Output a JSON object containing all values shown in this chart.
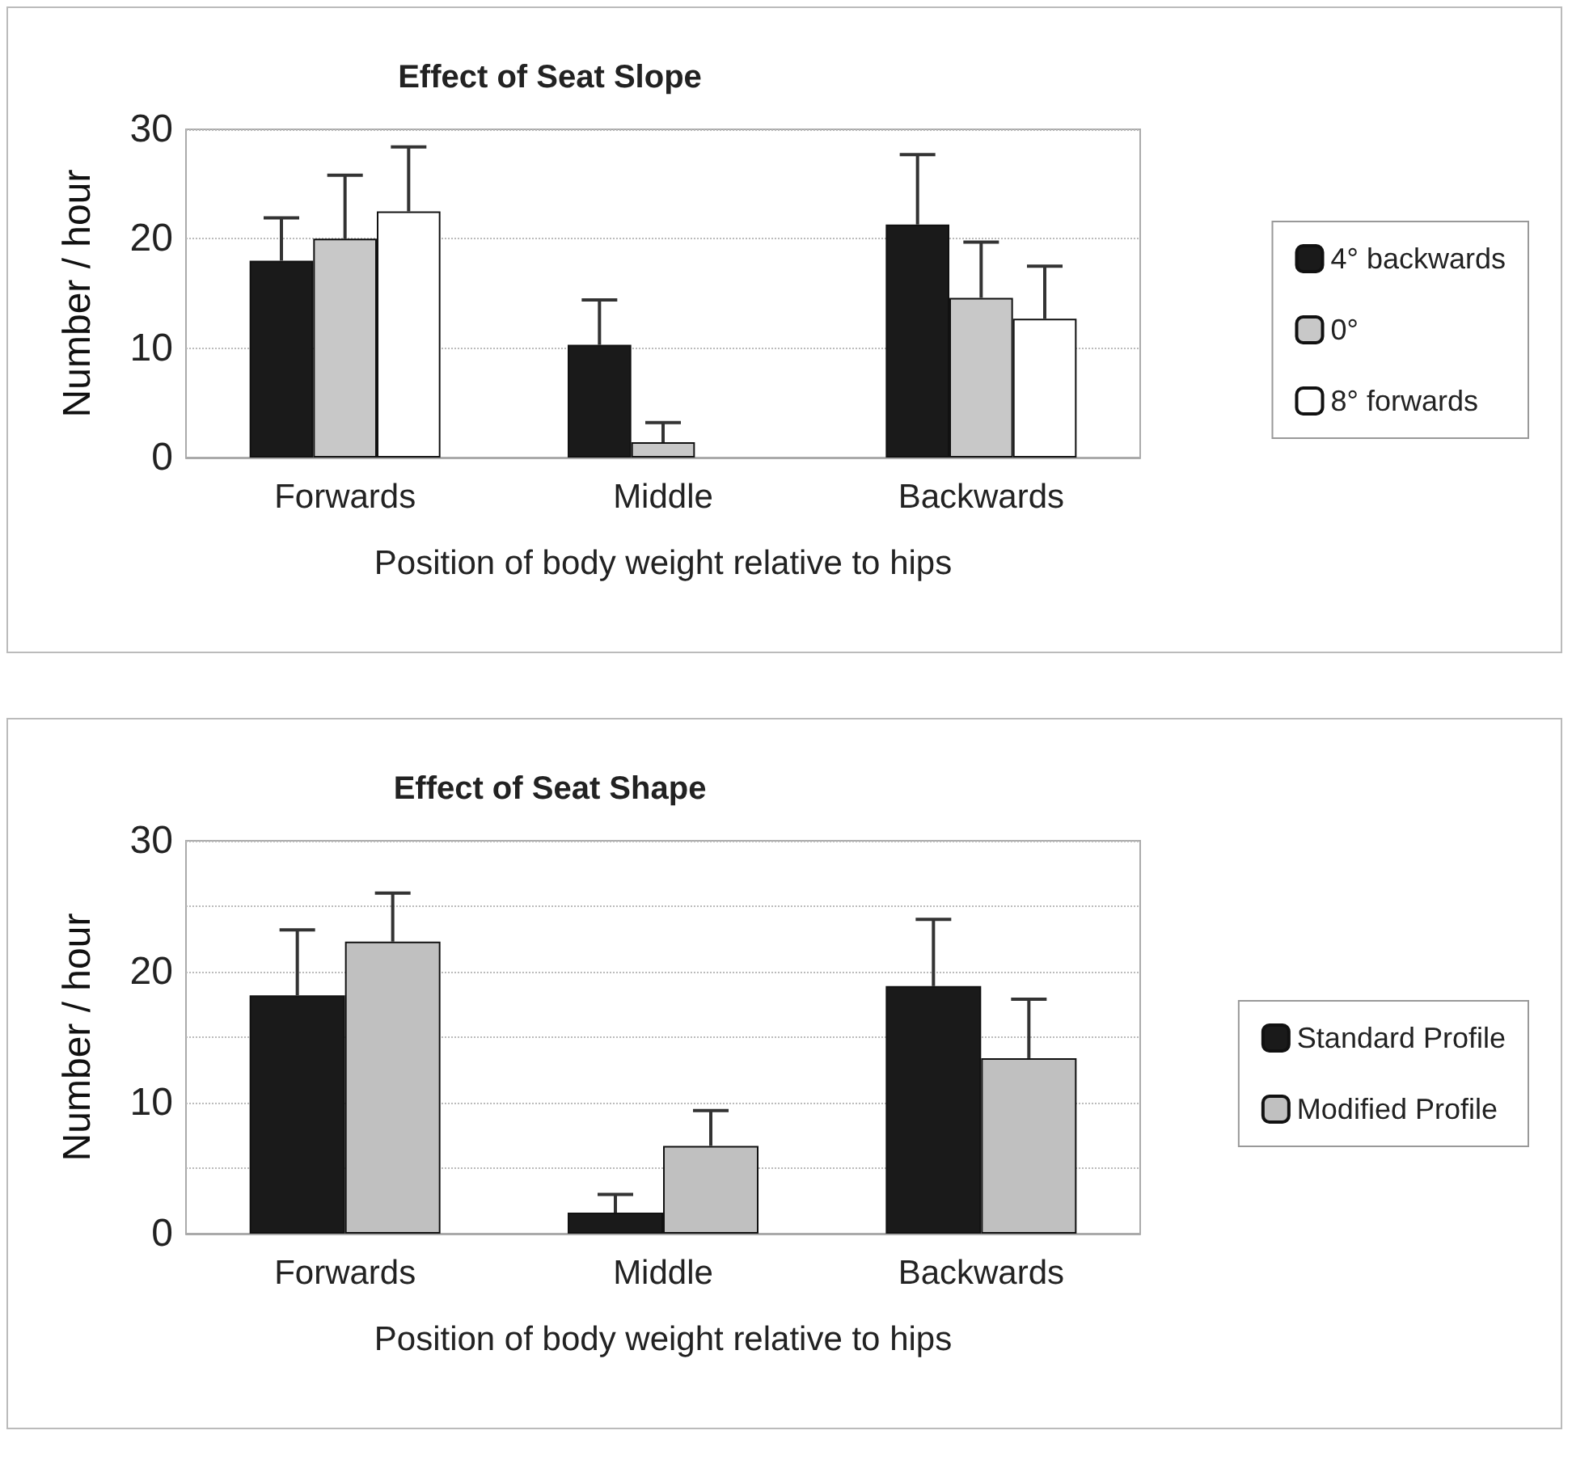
{
  "chart_data": [
    {
      "type": "bar",
      "title": "Effect of Seat Slope",
      "xlabel": "Position of body weight relative to hips",
      "ylabel": "Number / hour",
      "categories": [
        "Forwards",
        "Middle",
        "Backwards"
      ],
      "series": [
        {
          "name": "4° backwards",
          "color": "#1a1a1a",
          "values": [
            18,
            10.3,
            21.3
          ],
          "errors": [
            [
              18,
              21.9
            ],
            [
              10.3,
              14.4
            ],
            [
              21.3,
              27.7
            ]
          ]
        },
        {
          "name": "0°",
          "color": "#c8c8c8",
          "values": [
            20,
            1.4,
            14.6
          ],
          "errors": [
            [
              20,
              25.8
            ],
            [
              1.4,
              3.2
            ],
            [
              14.6,
              19.7
            ]
          ]
        },
        {
          "name": "8° forwards",
          "color": "#ffffff",
          "values": [
            22.5,
            null,
            12.7
          ],
          "errors": [
            [
              22.5,
              28.4
            ],
            null,
            [
              12.7,
              17.5
            ]
          ]
        }
      ],
      "ylim": [
        0,
        30
      ],
      "yticks": [
        0,
        10,
        20,
        30
      ],
      "grid": "y",
      "legend": "right"
    },
    {
      "type": "bar",
      "title": "Effect of Seat Shape",
      "xlabel": "Position of body weight relative to hips",
      "ylabel": "Number / hour",
      "categories": [
        "Forwards",
        "Middle",
        "Backwards"
      ],
      "series": [
        {
          "name": "Standard Profile",
          "color": "#1a1a1a",
          "values": [
            18.2,
            1.6,
            18.9
          ],
          "errors": [
            [
              18.2,
              23.2
            ],
            [
              1.6,
              3.0
            ],
            [
              18.9,
              24.0
            ]
          ]
        },
        {
          "name": "Modified Profile",
          "color": "#c0c0c0",
          "values": [
            22.3,
            6.7,
            13.4
          ],
          "errors": [
            [
              22.3,
              26.0
            ],
            [
              6.7,
              9.4
            ],
            [
              13.4,
              17.9
            ]
          ]
        }
      ],
      "ylim": [
        0,
        30
      ],
      "yticks": [
        0,
        {
          "value": 5,
          "label": null
        },
        10,
        {
          "value": 15,
          "label": null
        },
        20,
        {
          "value": 25,
          "label": null
        },
        30
      ],
      "grid": "y",
      "legend": "right"
    }
  ]
}
